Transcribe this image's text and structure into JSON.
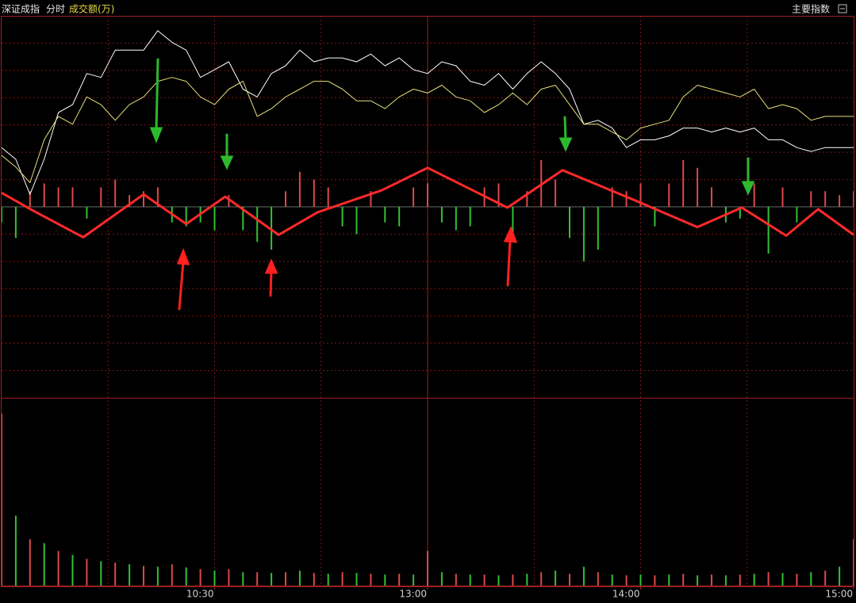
{
  "header": {
    "index": "深证成指",
    "mode": "分时",
    "menu": "主要指数"
  },
  "chart_data": [
    {
      "type": "line",
      "x": [
        0,
        4,
        8,
        12,
        16,
        20,
        24,
        28,
        32,
        36,
        40,
        44,
        48,
        52,
        56,
        60,
        64,
        68,
        72,
        76,
        80,
        84,
        88,
        92,
        96,
        100,
        104,
        108,
        112,
        116,
        120,
        124,
        128,
        132,
        136,
        140,
        144,
        148,
        152,
        156,
        160,
        164,
        168,
        172,
        176,
        180,
        184,
        188,
        192,
        196,
        200,
        204,
        208,
        212,
        216,
        220,
        224,
        228,
        232,
        236,
        240
      ],
      "xlim": [
        0,
        240
      ],
      "xticks": [
        {
          "value": 60,
          "label": "10:30"
        },
        {
          "value": 120,
          "label": "13:00"
        },
        {
          "value": 180,
          "label": "14:00"
        },
        {
          "value": 240,
          "label": "15:00"
        }
      ],
      "xgrid": [
        30,
        60,
        90,
        150,
        180,
        210
      ],
      "session_break": 120,
      "ylim": [
        -245,
        245
      ],
      "ygrid": [
        -210,
        -175,
        -140,
        -105,
        -70,
        -35,
        0,
        35,
        70,
        105,
        140,
        175,
        210
      ],
      "series": [
        {
          "color": "#ffffff",
          "width": 1,
          "values": [
            76,
            61,
            16,
            61,
            121,
            131,
            171,
            166,
            201,
            201,
            201,
            226,
            211,
            201,
            166,
            176,
            186,
            151,
            141,
            171,
            181,
            201,
            186,
            191,
            191,
            186,
            196,
            181,
            191,
            176,
            171,
            186,
            181,
            161,
            156,
            171,
            151,
            171,
            186,
            171,
            151,
            106,
            111,
            101,
            76,
            86,
            86,
            91,
            101,
            101,
            96,
            101,
            96,
            101,
            86,
            86,
            76,
            71,
            76,
            76,
            76
          ]
        },
        {
          "color": "#e8e07a",
          "width": 1,
          "values": [
            66,
            51,
            31,
            86,
            116,
            106,
            141,
            131,
            111,
            131,
            141,
            161,
            166,
            161,
            141,
            131,
            151,
            161,
            116,
            126,
            141,
            151,
            161,
            161,
            151,
            136,
            136,
            126,
            141,
            151,
            146,
            156,
            141,
            136,
            121,
            131,
            146,
            131,
            151,
            156,
            131,
            106,
            106,
            96,
            86,
            101,
            106,
            111,
            141,
            156,
            151,
            146,
            141,
            151,
            126,
            131,
            126,
            111,
            116,
            116,
            116
          ]
        },
        {
          "color": "#ff2a2a",
          "width": 3,
          "x": [
            0,
            8.5,
            23,
            40,
            52,
            63,
            78,
            89,
            107,
            120,
            142.5,
            158,
            178,
            196,
            208.5,
            221,
            230,
            240
          ],
          "values": [
            18,
            -4,
            -39,
            16,
            -22,
            13,
            -36,
            -7,
            21,
            50,
            -1,
            47,
            9,
            -26,
            -1,
            -37,
            -3,
            -36
          ]
        }
      ],
      "bars": {
        "up_color": "#e04848",
        "down_color": "#34c034",
        "values": [
          -20,
          -40,
          20,
          30,
          25,
          25,
          -15,
          25,
          35,
          15,
          20,
          25,
          -20,
          -25,
          -20,
          -30,
          15,
          -30,
          -45,
          -55,
          20,
          45,
          35,
          25,
          -25,
          -35,
          20,
          -20,
          -25,
          25,
          30,
          -20,
          -30,
          -25,
          25,
          30,
          -35,
          20,
          60,
          35,
          -40,
          -70,
          -55,
          25,
          20,
          30,
          -25,
          30,
          60,
          50,
          25,
          -20,
          -15,
          30,
          -60,
          25,
          -20,
          20,
          20,
          15,
          20
        ]
      }
    },
    {
      "type": "bar",
      "title": "成交额(万)",
      "x": [
        0,
        4,
        8,
        12,
        16,
        20,
        24,
        28,
        32,
        36,
        40,
        44,
        48,
        52,
        56,
        60,
        64,
        68,
        72,
        76,
        80,
        84,
        88,
        92,
        96,
        100,
        104,
        108,
        112,
        116,
        120,
        124,
        128,
        132,
        136,
        140,
        144,
        148,
        152,
        156,
        160,
        164,
        168,
        172,
        176,
        180,
        184,
        188,
        192,
        196,
        200,
        204,
        208,
        212,
        216,
        220,
        224,
        228,
        232,
        236,
        240
      ],
      "xlim": [
        0,
        240
      ],
      "ylim": [
        0,
        240
      ],
      "up_color": "#e04848",
      "down_color": "#34c034",
      "values": [
        220,
        90,
        60,
        55,
        45,
        40,
        35,
        32,
        30,
        28,
        26,
        25,
        28,
        24,
        22,
        20,
        22,
        18,
        18,
        17,
        18,
        20,
        17,
        16,
        18,
        17,
        16,
        15,
        16,
        15,
        45,
        18,
        16,
        15,
        15,
        14,
        15,
        16,
        18,
        20,
        16,
        25,
        18,
        15,
        14,
        15,
        14,
        15,
        16,
        14,
        15,
        14,
        15,
        16,
        18,
        17,
        16,
        18,
        20,
        25,
        60
      ]
    }
  ]
}
